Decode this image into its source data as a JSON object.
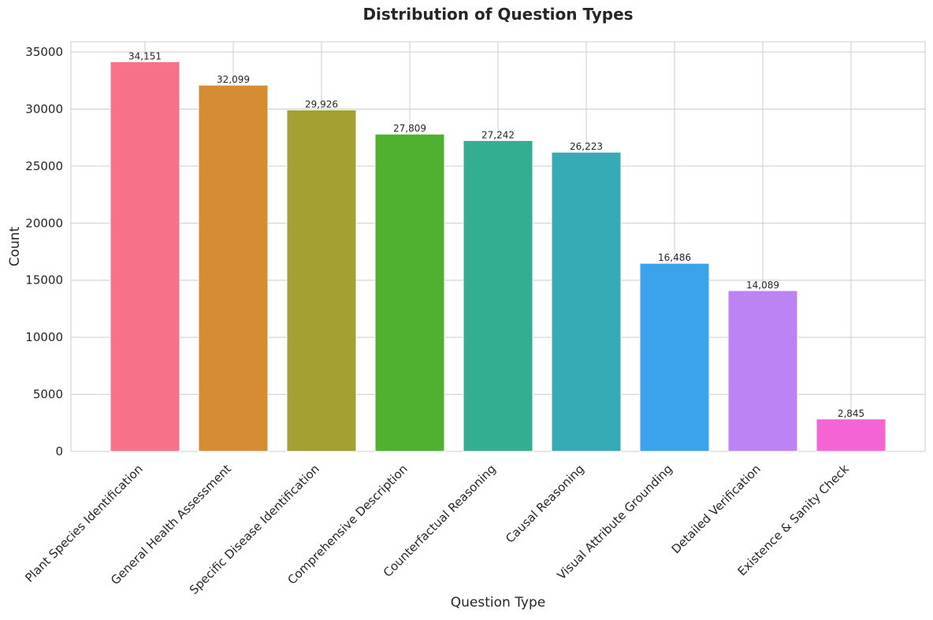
{
  "chart_data": {
    "type": "bar",
    "title": "Distribution of Question Types",
    "xlabel": "Question Type",
    "ylabel": "Count",
    "ylim": [
      0,
      35900
    ],
    "yticks": [
      0,
      5000,
      10000,
      15000,
      20000,
      25000,
      30000,
      35000
    ],
    "grid": true,
    "categories": [
      "Plant Species Identification",
      "General Health Assessment",
      "Specific Disease Identification",
      "Comprehensive Description",
      "Counterfactual Reasoning",
      "Causal Reasoning",
      "Visual Attribute Grounding",
      "Detailed Verification",
      "Existence & Sanity Check"
    ],
    "values": [
      34151,
      32099,
      29926,
      27809,
      27242,
      26223,
      16486,
      14089,
      2845
    ],
    "value_labels": [
      "34,151",
      "32,099",
      "29,926",
      "27,809",
      "27,242",
      "26,223",
      "16,486",
      "14,089",
      "2,845"
    ],
    "colors": [
      "#f77189",
      "#d58c32",
      "#a4a031",
      "#50b131",
      "#34ae91",
      "#37abb5",
      "#3ba3ec",
      "#bb83f4",
      "#f564d4"
    ]
  }
}
